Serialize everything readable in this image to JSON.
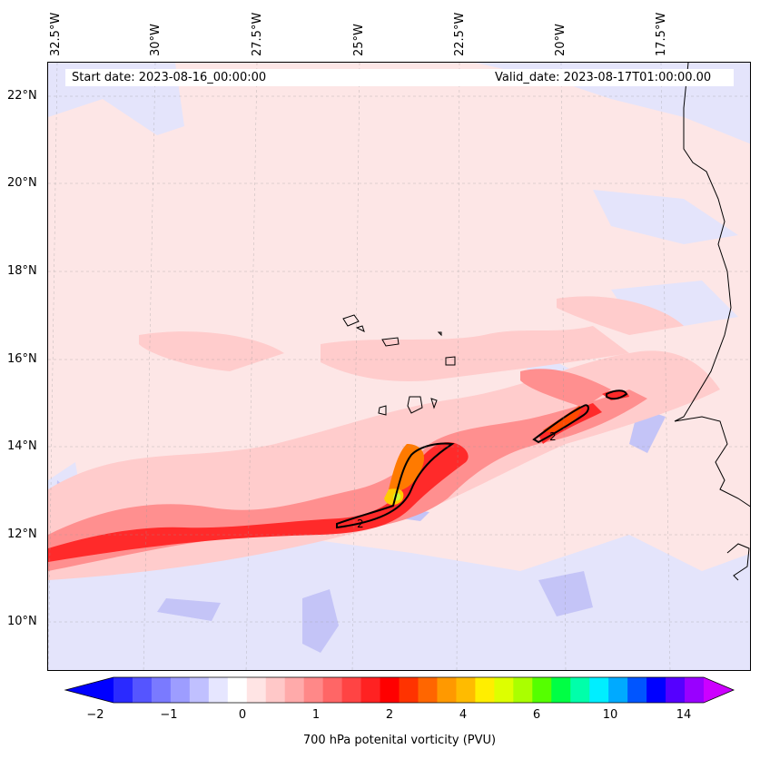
{
  "info": {
    "start_date": "Start date: 2023-08-16_00:00:00",
    "valid_date": "Valid_date: 2023-08-17T01:00:00.00"
  },
  "lon_labels": [
    "32.5°W",
    "30°W",
    "27.5°W",
    "25°W",
    "22.5°W",
    "20°W",
    "17.5°W"
  ],
  "lat_labels": [
    "22°N",
    "20°N",
    "18°N",
    "16°N",
    "14°N",
    "12°N",
    "10°N"
  ],
  "contour_labels": [
    "2",
    "2"
  ],
  "colorbar": {
    "title": "700 hPa potenital vorticity (PVU)",
    "tick_labels": [
      "−2",
      "−1",
      "0",
      "1",
      "2",
      "4",
      "6",
      "10",
      "14"
    ],
    "colors": [
      "#0000ff",
      "#2a2aff",
      "#5555ff",
      "#7a7aff",
      "#9d9dff",
      "#c0c0ff",
      "#e6e6ff",
      "#ffffff",
      "#ffe4e4",
      "#ffc8c8",
      "#ffaaaa",
      "#ff8888",
      "#ff6666",
      "#ff4444",
      "#ff2222",
      "#ff0000",
      "#ff3300",
      "#ff6600",
      "#ff9900",
      "#ffbb00",
      "#ffee00",
      "#ddff00",
      "#aaff00",
      "#55ff00",
      "#00ff44",
      "#00ffaa",
      "#00eeff",
      "#00aaff",
      "#0055ff",
      "#0000ff",
      "#5500ff",
      "#9900ff",
      "#cc00ff"
    ]
  }
}
